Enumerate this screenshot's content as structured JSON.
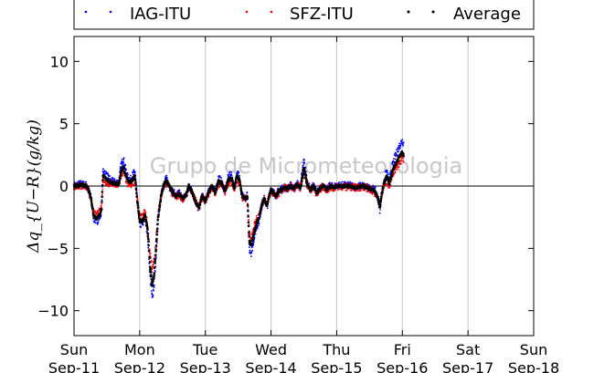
{
  "chart_data": {
    "type": "scatter",
    "ylabel": "Δq_{U−R}(g/kg)",
    "ylim": [
      -12,
      12
    ],
    "yticks": [
      -10,
      -5,
      0,
      5,
      10
    ],
    "xlim": [
      0,
      7
    ],
    "x_unit": "days since Sun Sep-11 00:00",
    "xticks": [
      {
        "day": "Sun",
        "date": "Sep-11"
      },
      {
        "day": "Mon",
        "date": "Sep-12"
      },
      {
        "day": "Tue",
        "date": "Sep-13"
      },
      {
        "day": "Wed",
        "date": "Sep-14"
      },
      {
        "day": "Thu",
        "date": "Sep-15"
      },
      {
        "day": "Fri",
        "date": "Sep-16"
      },
      {
        "day": "Sat",
        "date": "Sep-17"
      },
      {
        "day": "Sun",
        "date": "Sep-18"
      }
    ],
    "vertical_grid": true,
    "zero_line": true,
    "legend_position": "top, above plot",
    "watermark": "Grupo de Micrometeorologia",
    "average": [
      [
        0.0,
        0.0
      ],
      [
        0.1,
        0.1
      ],
      [
        0.2,
        0.0
      ],
      [
        0.26,
        -1.0
      ],
      [
        0.3,
        -2.4
      ],
      [
        0.35,
        -2.6
      ],
      [
        0.4,
        -2.2
      ],
      [
        0.42,
        -1.8
      ],
      [
        0.44,
        0.9
      ],
      [
        0.48,
        0.6
      ],
      [
        0.55,
        0.3
      ],
      [
        0.62,
        0.2
      ],
      [
        0.68,
        0.2
      ],
      [
        0.72,
        1.2
      ],
      [
        0.75,
        1.6
      ],
      [
        0.78,
        1.0
      ],
      [
        0.82,
        0.4
      ],
      [
        0.86,
        0.3
      ],
      [
        0.9,
        0.6
      ],
      [
        0.93,
        0.8
      ],
      [
        0.96,
        -1.0
      ],
      [
        1.0,
        -2.8
      ],
      [
        1.05,
        -2.8
      ],
      [
        1.08,
        -2.2
      ],
      [
        1.12,
        -3.5
      ],
      [
        1.16,
        -6.5
      ],
      [
        1.19,
        -8.0
      ],
      [
        1.22,
        -7.0
      ],
      [
        1.25,
        -5.0
      ],
      [
        1.28,
        -2.5
      ],
      [
        1.32,
        -1.0
      ],
      [
        1.36,
        0.0
      ],
      [
        1.4,
        0.4
      ],
      [
        1.45,
        0.0
      ],
      [
        1.5,
        -0.5
      ],
      [
        1.55,
        -0.8
      ],
      [
        1.6,
        -0.6
      ],
      [
        1.65,
        -1.0
      ],
      [
        1.7,
        -0.8
      ],
      [
        1.75,
        0.0
      ],
      [
        1.8,
        -0.5
      ],
      [
        1.85,
        -1.2
      ],
      [
        1.9,
        -1.8
      ],
      [
        1.95,
        -0.8
      ],
      [
        2.0,
        -1.2
      ],
      [
        2.05,
        -0.5
      ],
      [
        2.1,
        0.0
      ],
      [
        2.15,
        -0.5
      ],
      [
        2.2,
        0.4
      ],
      [
        2.25,
        0.2
      ],
      [
        2.3,
        -0.4
      ],
      [
        2.35,
        0.5
      ],
      [
        2.4,
        0.6
      ],
      [
        2.44,
        -0.2
      ],
      [
        2.48,
        0.8
      ],
      [
        2.52,
        0.5
      ],
      [
        2.56,
        -0.8
      ],
      [
        2.6,
        -1.0
      ],
      [
        2.64,
        -0.8
      ],
      [
        2.67,
        -4.5
      ],
      [
        2.7,
        -4.8
      ],
      [
        2.74,
        -3.8
      ],
      [
        2.78,
        -3.0
      ],
      [
        2.82,
        -2.5
      ],
      [
        2.86,
        -1.5
      ],
      [
        2.9,
        -1.0
      ],
      [
        2.94,
        -1.6
      ],
      [
        2.97,
        -0.8
      ],
      [
        3.0,
        -0.3
      ],
      [
        3.04,
        -0.6
      ],
      [
        3.08,
        -0.8
      ],
      [
        3.12,
        -0.4
      ],
      [
        3.16,
        -0.3
      ],
      [
        3.2,
        -0.1
      ],
      [
        3.25,
        -0.2
      ],
      [
        3.3,
        0.0
      ],
      [
        3.35,
        -0.2
      ],
      [
        3.4,
        0.1
      ],
      [
        3.45,
        -0.1
      ],
      [
        3.5,
        1.5
      ],
      [
        3.55,
        0.2
      ],
      [
        3.6,
        -0.3
      ],
      [
        3.65,
        0.0
      ],
      [
        3.7,
        -0.6
      ],
      [
        3.75,
        -0.2
      ],
      [
        3.8,
        0.0
      ],
      [
        3.85,
        -0.3
      ],
      [
        3.9,
        0.0
      ],
      [
        3.95,
        -0.1
      ],
      [
        4.0,
        0.0
      ],
      [
        4.1,
        0.0
      ],
      [
        4.2,
        0.0
      ],
      [
        4.3,
        -0.1
      ],
      [
        4.4,
        0.0
      ],
      [
        4.5,
        -0.2
      ],
      [
        4.58,
        -0.4
      ],
      [
        4.63,
        -1.0
      ],
      [
        4.66,
        -1.8
      ],
      [
        4.68,
        -0.8
      ],
      [
        4.72,
        0.2
      ],
      [
        4.76,
        0.8
      ],
      [
        4.8,
        0.2
      ],
      [
        4.84,
        1.0
      ],
      [
        4.88,
        1.6
      ],
      [
        4.92,
        2.0
      ],
      [
        4.96,
        2.4
      ],
      [
        5.0,
        2.7
      ],
      [
        5.02,
        2.5
      ]
    ],
    "series": [
      {
        "name": "IAG-ITU",
        "color": "#0000ff",
        "offset_scale": 0.3,
        "offset_bias": 0.15
      },
      {
        "name": "SFZ-ITU",
        "color": "#ff0000",
        "offset_scale": 0.18,
        "offset_bias": -0.2
      },
      {
        "name": "Average",
        "color": "#000000",
        "offset_scale": 0.0,
        "offset_bias": 0.0
      }
    ]
  }
}
